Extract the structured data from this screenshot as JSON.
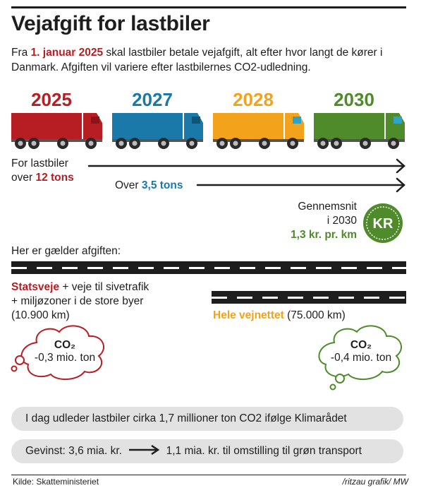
{
  "title": "Vejafgift for lastbiler",
  "intro": {
    "prefix": "Fra ",
    "date": "1. januar 2025",
    "suffix": " skal lastbiler betale vejafgift, alt efter hvor langt de kører i Danmark. Afgiften vil variere efter lastbilernes CO2-udledning."
  },
  "timeline": [
    {
      "year": "2025",
      "color": "#b71e24"
    },
    {
      "year": "2027",
      "color": "#1a79a8"
    },
    {
      "year": "2028",
      "color": "#f2a21b"
    },
    {
      "year": "2030",
      "color": "#4f8a2b"
    }
  ],
  "weights": {
    "heavy_line1": "For lastbiler",
    "heavy_prefix": "over ",
    "heavy_value": "12 tons",
    "light_prefix": "Over ",
    "light_value": "3,5 tons"
  },
  "average": {
    "line1": "Gennemsnit",
    "line2": "i 2030",
    "value": "1,3 kr. pr. km",
    "badge": "KR"
  },
  "roads_intro": "Her er gælder afgiften:",
  "state_roads": {
    "name": "Statsveje",
    "rest1": " + veje til sivetrafik",
    "line2": "+ miljøzoner i de store byer",
    "line3": "(10.900 km)"
  },
  "all_roads": {
    "name": "Hele vejnettet",
    "rest": " (75.000 km)"
  },
  "co2_left": {
    "label": "CO₂",
    "value": "-0,3 mio. ton"
  },
  "co2_right": {
    "label": "CO₂",
    "value": "-0,4 mio. ton"
  },
  "facts": {
    "emissions": "I dag udleder lastbiler cirka 1,7 millioner ton CO2 ifølge Klimarådet",
    "gain_prefix": "Gevinst: 3,6 mia. kr.",
    "gain_suffix": "1,1 mia. kr. til omstilling til grøn transport"
  },
  "footer": {
    "source": "Kilde: Skatteministeriet",
    "credit": "/ritzau grafik/ MW"
  }
}
